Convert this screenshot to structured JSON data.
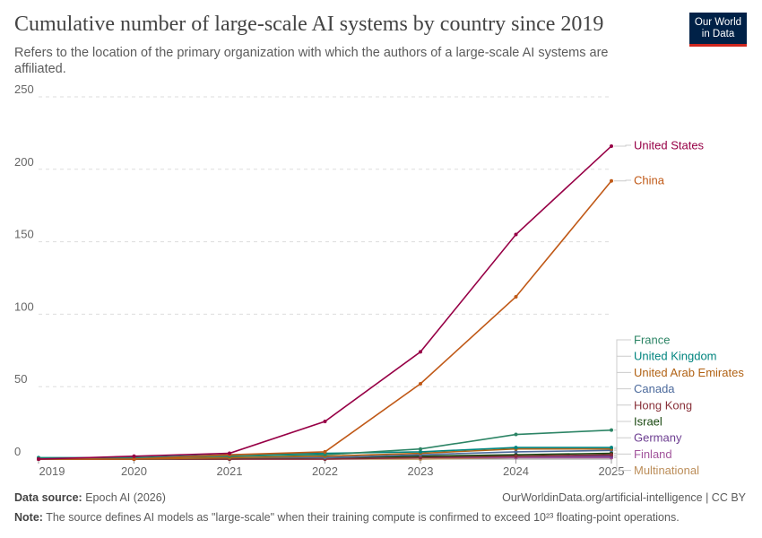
{
  "header": {
    "title": "Cumulative number of large-scale AI systems by country since 2019",
    "subtitle": "Refers to the location of the primary organization with which the authors of a large-scale AI systems are affiliated.",
    "logo": "Our World in Data"
  },
  "footer": {
    "source_label": "Data source:",
    "source": "Epoch AI (2026)",
    "url": "OurWorldinData.org/artificial-intelligence | CC BY",
    "note_label": "Note:",
    "note": "The source defines AI models as \"large-scale\" when their training compute is confirmed to exceed 10²³ floating-point operations."
  },
  "chart_data": {
    "type": "line",
    "x": [
      2019,
      2020,
      2021,
      2022,
      2023,
      2024,
      2025
    ],
    "xlim": [
      2019,
      2025
    ],
    "ylim": [
      0,
      250
    ],
    "yticks": [
      0,
      50,
      100,
      150,
      200,
      250
    ],
    "grid": "horizontal dashed",
    "legend": "right, labels at line ends",
    "series": [
      {
        "name": "United States",
        "color": "#970046",
        "values": [
          0,
          2,
          4,
          26,
          74,
          155,
          216
        ]
      },
      {
        "name": "China",
        "color": "#c05917",
        "values": [
          0,
          0,
          3,
          5,
          52,
          112,
          192
        ]
      },
      {
        "name": "France",
        "color": "#2c8465",
        "values": [
          0.5,
          1,
          2,
          3,
          7,
          17,
          20
        ]
      },
      {
        "name": "United Kingdom",
        "color": "#00847e",
        "values": [
          1,
          1,
          3,
          4,
          5,
          8,
          8
        ]
      },
      {
        "name": "United Arab Emirates",
        "color": "#b16214",
        "values": [
          0,
          0,
          1,
          2,
          4,
          7,
          7
        ]
      },
      {
        "name": "Canada",
        "color": "#4c6a9c",
        "values": [
          0,
          0,
          1,
          1,
          3,
          5,
          6
        ]
      },
      {
        "name": "Hong Kong",
        "color": "#883039",
        "values": [
          0,
          0,
          0,
          0,
          1,
          2,
          3
        ]
      },
      {
        "name": "Israel",
        "color": "#18470f",
        "values": [
          0,
          0,
          0,
          1,
          2,
          3,
          4
        ]
      },
      {
        "name": "Germany",
        "color": "#6d3e91",
        "values": [
          0,
          0,
          1,
          1,
          2,
          2,
          2
        ]
      },
      {
        "name": "Finland",
        "color": "#a2559c",
        "values": [
          0,
          0,
          0,
          0,
          1,
          1,
          1
        ]
      },
      {
        "name": "Multinational",
        "color": "#bc8e5a",
        "values": [
          0,
          0,
          0,
          0,
          0,
          1,
          1
        ]
      }
    ]
  }
}
